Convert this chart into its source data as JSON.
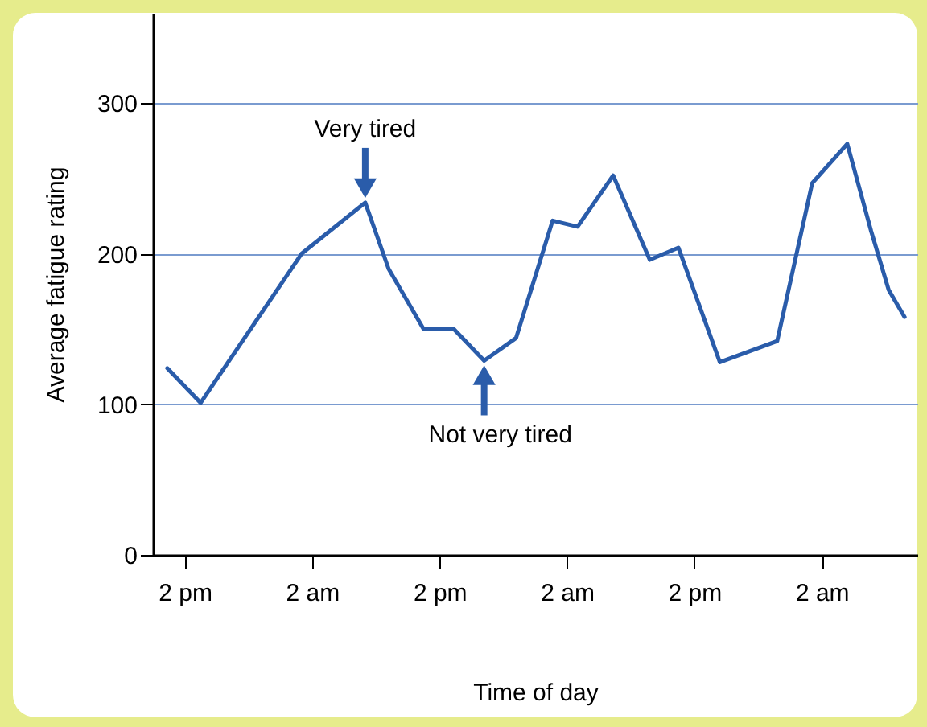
{
  "chart_data": {
    "type": "line",
    "xlabel": "Time of day",
    "ylabel": "Average fatigue rating",
    "x": [
      "--01-01T12:21",
      "--01-01T15:30",
      "--01-02T01:00",
      "--01-02T07:00",
      "--01-02T09:12",
      "--01-02T12:30",
      "--01-02T15:21",
      "--01-02T18:12",
      "--01-02T21:12",
      "--01-03T00:39",
      "--01-03T03:00",
      "--01-03T06:21",
      "--01-03T09:48",
      "--01-03T12:30",
      "--01-03T16:24",
      "--01-03T21:48",
      "--01-04T01:06",
      "--01-04T04:24",
      "--01-04T06:39",
      "--01-04T08:18",
      "--01-04T09:48"
    ],
    "series": [
      {
        "color": "#2a5caa",
        "values": [
          124,
          101,
          200,
          234,
          190,
          150,
          150,
          129,
          144,
          222,
          218,
          252,
          196,
          204,
          128,
          142,
          247,
          273,
          215,
          176,
          158
        ]
      }
    ],
    "xlim": [
      "--01-01T11:00",
      "--01-04T11:00"
    ],
    "xticks": [
      {
        "value": "--01-01T14:00",
        "label": "2 pm"
      },
      {
        "value": "--01-02T02:00",
        "label": "2 am"
      },
      {
        "value": "--01-02T14:00",
        "label": "2 pm"
      },
      {
        "value": "--01-03T02:00",
        "label": "2 am"
      },
      {
        "value": "--01-03T14:00",
        "label": "2 pm"
      },
      {
        "value": "--01-04T02:00",
        "label": "2 am"
      }
    ],
    "ylim": [
      0,
      360
    ],
    "yticks": [
      0,
      100,
      200,
      300
    ],
    "grid": "y",
    "marker": "none",
    "line_style": "solid",
    "annotations": [
      {
        "text": "Very tired",
        "x": "--01-02T07:00",
        "y": 234
      },
      {
        "text": "Not very tired",
        "x": "--01-02T18:12",
        "y": 129
      }
    ]
  }
}
